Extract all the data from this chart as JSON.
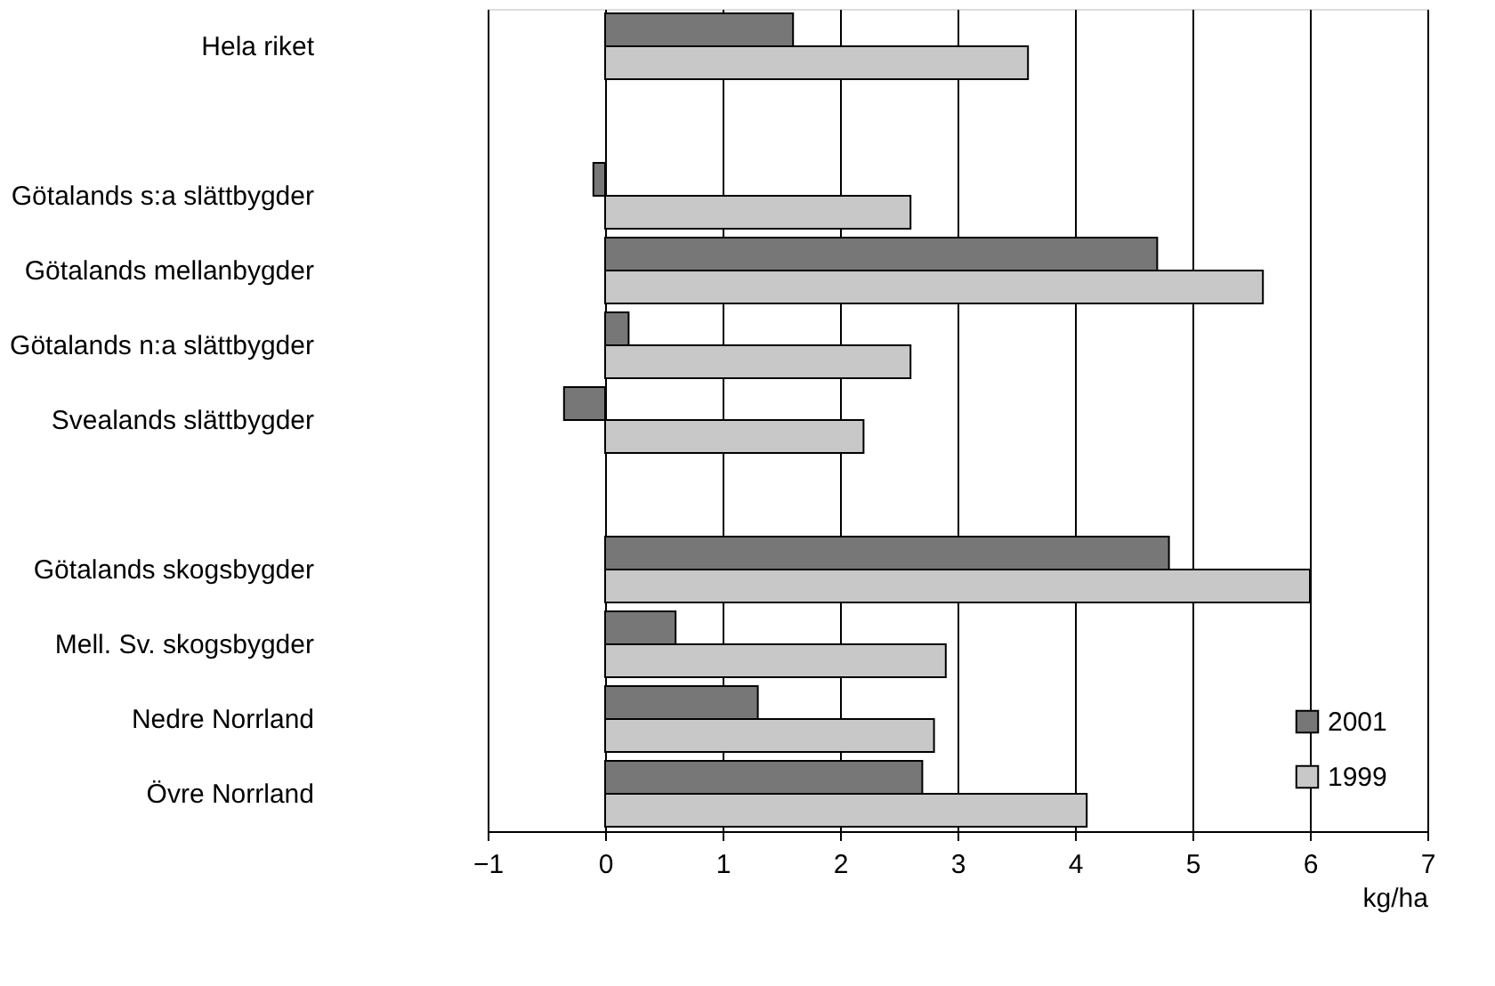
{
  "chart_data": {
    "type": "bar",
    "orientation": "horizontal",
    "xlabel": "kg/ha",
    "categories": [
      "Hela riket",
      null,
      "Götalands s:a slättbygder",
      "Götalands mellanbygder",
      "Götalands n:a slättbygder",
      "Svealands slättbygder",
      null,
      "Götalands skogsbygder",
      "Mell. Sv. skogsbygder",
      "Nedre Norrland",
      "Övre Norrland"
    ],
    "series": [
      {
        "name": "2001",
        "color": "#777777",
        "values": [
          1.6,
          null,
          -0.1,
          4.7,
          0.2,
          -0.35,
          null,
          4.8,
          0.6,
          1.3,
          2.7
        ]
      },
      {
        "name": "1999",
        "color": "#c8c8c8",
        "values": [
          3.6,
          null,
          2.6,
          5.6,
          2.6,
          2.2,
          null,
          6.0,
          2.9,
          2.8,
          4.1
        ]
      }
    ],
    "xlim": [
      -1,
      7
    ],
    "xticks": [
      -1,
      0,
      1,
      2,
      3,
      4,
      5,
      6,
      7
    ],
    "grid": "x",
    "legend": "bottom right"
  }
}
